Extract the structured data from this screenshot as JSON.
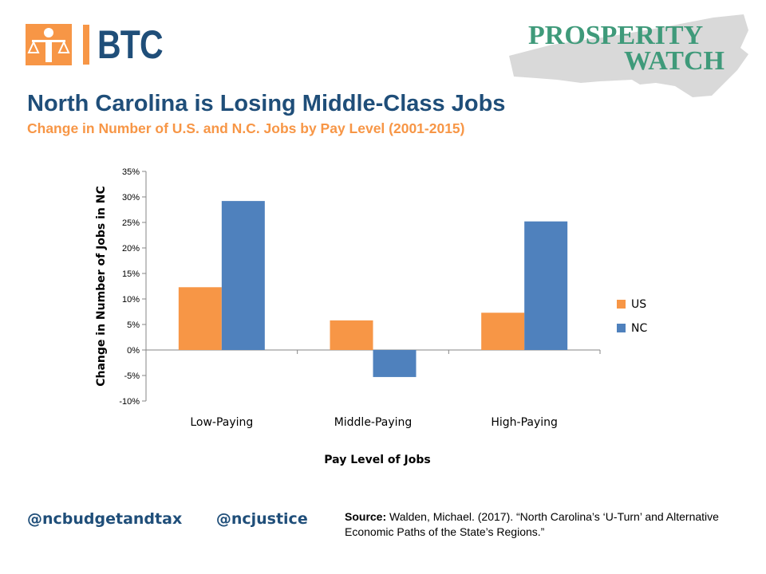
{
  "brand": {
    "btc_text": "BTC",
    "prosperity_line1": "PROSPERITY",
    "prosperity_line2": "WATCH"
  },
  "header": {
    "title": "North Carolina is Losing Middle-Class Jobs",
    "subtitle": "Change in Number of U.S. and N.C. Jobs by Pay Level (2001-2015)"
  },
  "footer": {
    "handle1": "@ncbudgetandtax",
    "handle2": "@ncjustice",
    "source_label": "Source:",
    "source_text": " Walden, Michael. (2017). “North Carolina’s ‘U-Turn’ and Alternative Economic Paths of the State’s Regions.”"
  },
  "colors": {
    "us": "#f79646",
    "nc": "#4f81bd",
    "title": "#1f4e79",
    "subtitle": "#f79646"
  },
  "chart_data": {
    "type": "bar",
    "categories": [
      "Low-Paying",
      "Middle-Paying",
      "High-Paying"
    ],
    "series": [
      {
        "name": "US",
        "values": [
          12.3,
          5.8,
          7.3
        ]
      },
      {
        "name": "NC",
        "values": [
          29.2,
          -5.3,
          25.2
        ]
      }
    ],
    "xlabel": "Pay Level of Jobs",
    "ylabel": "Change in Number of Jobs in NC",
    "ylim": [
      -10,
      35
    ],
    "yticks": [
      "35%",
      "30%",
      "25%",
      "20%",
      "15%",
      "10%",
      "5%",
      "0%",
      "-5%",
      "-10%"
    ],
    "legend_position": "right",
    "grid": false
  }
}
